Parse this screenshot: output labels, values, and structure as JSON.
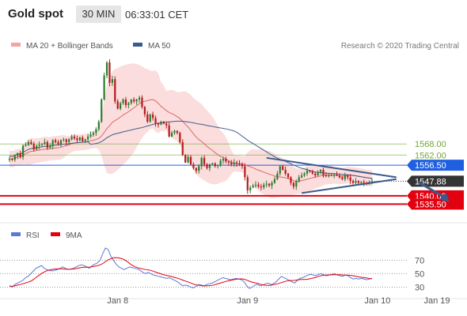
{
  "header": {
    "instrument": "Gold spot",
    "timeframe": "30 MIN",
    "clock": "06:33:01 CET"
  },
  "colors": {
    "up": "#2e7d32",
    "down": "#b71c1c",
    "bollinger_fill": "#f9d2d2",
    "ma20": "#e06666",
    "ma50": "#3d5a8c",
    "support_red": "#e3000f",
    "resistance_green": "#6fa832",
    "pivot_blue": "#1f5fe0",
    "last_price_bg": "#333333",
    "rsi": "#5b79d4",
    "rsi_ma": "#e3000f"
  },
  "chart_data": [
    {
      "type": "candlestick",
      "legend": [
        {
          "label": "MA 20 + Bollinger Bands",
          "color": "#e06666",
          "kind": "ma20"
        },
        {
          "label": "MA 50",
          "color": "#3d5a8c",
          "kind": "ma50"
        }
      ],
      "legend_placement": "top-left",
      "watermark": "Research © 2020 Trading Central",
      "x_labels": [
        {
          "label": "Jan 8",
          "index": 40
        },
        {
          "label": "Jan 9",
          "index": 88
        },
        {
          "label": "Jan 10",
          "index": 136
        },
        {
          "label": "Jan 19",
          "index": 158
        }
      ],
      "ylim": [
        1528,
        1618
      ],
      "levels": [
        {
          "value": 1568.0,
          "label": "1568.00",
          "kind": "resistance"
        },
        {
          "value": 1562.0,
          "label": "1562.00",
          "kind": "resistance"
        },
        {
          "value": 1556.5,
          "label": "1556.50",
          "kind": "pivot"
        },
        {
          "value": 1540.0,
          "label": "1540.00",
          "kind": "support"
        },
        {
          "value": 1535.5,
          "label": "1535.50",
          "kind": "support"
        }
      ],
      "last_price": {
        "value": 1547.88,
        "label": "1547.88"
      },
      "triangle": {
        "upper": [
          [
            95,
            1560.5
          ],
          [
            143,
            1550.0
          ]
        ],
        "lower": [
          [
            108,
            1541.5
          ],
          [
            143,
            1549.0
          ]
        ]
      },
      "projection": [
        [
          151,
          1547.5
        ],
        [
          162,
          1537.5
        ]
      ],
      "candles_close": [
        1560.0,
        1559.5,
        1561.5,
        1563.0,
        1561.0,
        1567.0,
        1567.5,
        1569.0,
        1568.0,
        1565.0,
        1567.0,
        1567.5,
        1568.0,
        1569.0,
        1566.0,
        1567.0,
        1570.0,
        1569.0,
        1568.0,
        1570.0,
        1570.5,
        1569.0,
        1570.5,
        1572.0,
        1571.0,
        1570.0,
        1571.5,
        1569.5,
        1570.5,
        1572.0,
        1573.0,
        1574.0,
        1576.0,
        1580.0,
        1592.0,
        1605.0,
        1612.0,
        1601.0,
        1603.0,
        1591.0,
        1587.0,
        1590.0,
        1592.0,
        1589.0,
        1590.0,
        1592.0,
        1591.0,
        1592.0,
        1593.0,
        1588.0,
        1584.0,
        1580.0,
        1584.0,
        1582.0,
        1579.0,
        1578.5,
        1580.0,
        1579.0,
        1578.0,
        1572.0,
        1574.0,
        1575.0,
        1574.0,
        1569.0,
        1562.0,
        1558.0,
        1561.0,
        1557.0,
        1555.0,
        1553.5,
        1556.0,
        1560.5,
        1557.0,
        1555.0,
        1557.0,
        1557.5,
        1556.0,
        1556.5,
        1559.0,
        1560.0,
        1558.5,
        1558.0,
        1557.0,
        1558.0,
        1557.5,
        1557.0,
        1556.0,
        1550.0,
        1543.0,
        1544.5,
        1545.5,
        1546.0,
        1545.0,
        1544.5,
        1546.0,
        1546.5,
        1545.5,
        1547.0,
        1549.0,
        1552.0,
        1556.0,
        1554.0,
        1552.0,
        1550.0,
        1547.0,
        1545.0,
        1548.0,
        1550.0,
        1551.0,
        1552.0,
        1553.5,
        1553.0,
        1552.0,
        1551.0,
        1553.0,
        1554.0,
        1551.0,
        1550.5,
        1551.0,
        1551.0,
        1551.5,
        1551.0,
        1550.0,
        1549.0,
        1551.0,
        1550.0,
        1548.0,
        1547.0,
        1548.0,
        1547.0,
        1547.5,
        1547.0,
        1546.5,
        1547.5,
        1547.88
      ],
      "rsi_panel": {
        "legend": [
          {
            "label": "RSI",
            "color": "#5b79d4"
          },
          {
            "label": "9MA",
            "color": "#e3000f"
          }
        ],
        "ylim": [
          20,
          95
        ],
        "ticks": [
          {
            "value": 70,
            "label": "70"
          },
          {
            "value": 50,
            "label": "50"
          },
          {
            "value": 30,
            "label": "30"
          }
        ],
        "rsi": [
          32,
          30,
          34,
          36,
          38,
          40,
          44,
          46,
          50,
          54,
          58,
          60,
          62,
          58,
          56,
          55,
          54,
          55,
          56,
          58,
          60,
          58,
          56,
          57,
          58,
          60,
          62,
          63,
          62,
          60,
          58,
          62,
          64,
          66,
          70,
          80,
          88,
          86,
          76,
          70,
          64,
          60,
          58,
          56,
          58,
          60,
          59,
          58,
          57,
          55,
          52,
          50,
          52,
          50,
          48,
          47,
          46,
          45,
          44,
          43,
          44,
          42,
          40,
          38,
          35,
          32,
          33,
          32,
          30,
          29,
          31,
          34,
          33,
          32,
          34,
          35,
          36,
          38,
          40,
          42,
          44,
          43,
          42,
          41,
          42,
          43,
          42,
          41,
          38,
          32,
          28,
          30,
          33,
          34,
          32,
          33,
          35,
          36,
          34,
          35,
          38,
          42,
          46,
          44,
          42,
          40,
          38,
          36,
          40,
          43,
          44,
          46,
          48,
          49,
          48,
          47,
          49,
          50,
          48,
          47,
          48,
          49,
          50,
          48,
          47,
          46,
          48,
          47,
          44,
          42,
          43,
          42,
          43,
          42,
          41,
          42,
          43
        ]
      }
    }
  ]
}
